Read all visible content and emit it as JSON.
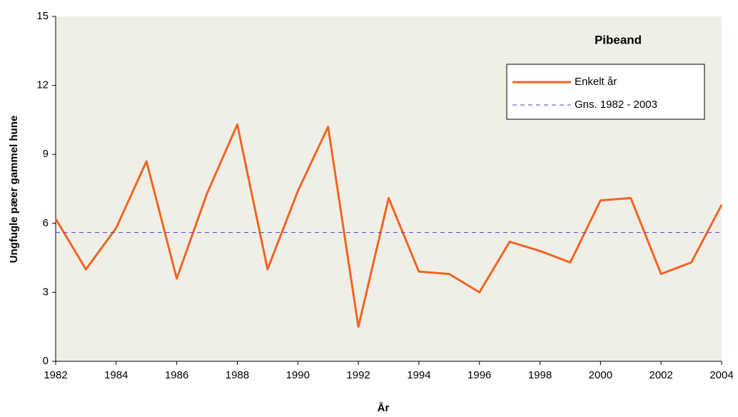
{
  "chart_data": {
    "type": "line",
    "title": "Pibeand",
    "x_label": "År",
    "y_label": "Ungfugle pæer gammel hune",
    "x": [
      1982,
      1983,
      1984,
      1985,
      1986,
      1987,
      1988,
      1989,
      1990,
      1991,
      1992,
      1993,
      1994,
      1995,
      1996,
      1997,
      1998,
      1999,
      2000,
      2001,
      2002,
      2003,
      2004
    ],
    "series": [
      {
        "name": "Enkelt år",
        "color": "#f26522",
        "values": [
          6.2,
          4.0,
          5.8,
          8.7,
          3.6,
          7.3,
          10.3,
          4.0,
          7.4,
          10.2,
          1.5,
          7.1,
          3.9,
          3.8,
          3.0,
          5.2,
          4.8,
          4.3,
          7.0,
          7.1,
          3.8,
          4.3,
          6.8
        ]
      },
      {
        "name": "Gns. 1982 - 2003",
        "color": "#4444cc",
        "dashed": true,
        "values": [
          5.6,
          5.6,
          5.6,
          5.6,
          5.6,
          5.6,
          5.6,
          5.6,
          5.6,
          5.6,
          5.6,
          5.6,
          5.6,
          5.6,
          5.6,
          5.6,
          5.6,
          5.6,
          5.6,
          5.6,
          5.6,
          5.6,
          5.6
        ]
      }
    ],
    "xlim": [
      1982,
      2004
    ],
    "xticks": [
      1982,
      1984,
      1986,
      1988,
      1990,
      1992,
      1994,
      1996,
      1998,
      2000,
      2002,
      2004
    ],
    "ylim": [
      0,
      15
    ],
    "yticks": [
      0,
      3,
      6,
      9,
      12,
      15
    ],
    "legend": "upper right"
  }
}
